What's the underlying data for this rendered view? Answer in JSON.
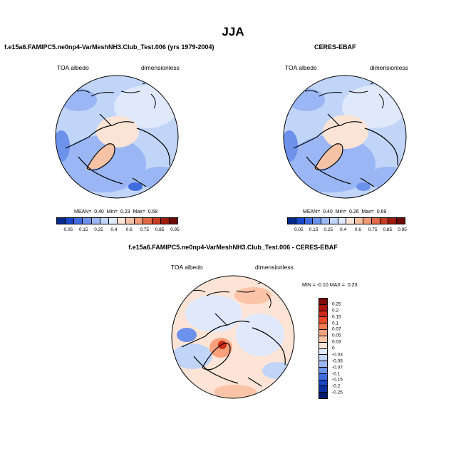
{
  "figure": {
    "season": "JJA",
    "panel1_title": "f.e15a6.FAMIPC5.ne0np4-VarMeshNH3.Club_Test.006 (yrs 1979-2004)",
    "panel2_title": "CERES-EBAF",
    "panel3_title": "f.e15a6.FAMIPC5.ne0np4-VarMeshNH3.Club_Test.006 - CERES-EBAF"
  },
  "chart_data": [
    {
      "type": "heatmap",
      "projection": "north-polar-stereographic",
      "title": "f.e15a6.FAMIPC5.ne0np4-VarMeshNH3.Club_Test.006 (yrs 1979-2004)",
      "left_label": "TOA albedo",
      "right_label": "dimensionless",
      "stats": {
        "mean_label": "MEAN=",
        "mean": "0.40",
        "min_label": "Min=",
        "min": "0.23",
        "max_label": "Max=",
        "max": "0.68"
      },
      "colorbar": {
        "levels": [
          "0.05",
          "0.15",
          "0.25",
          "0.4",
          "0.6",
          "0.75",
          "0.85",
          "0.95"
        ],
        "colors": [
          "#052a8c",
          "#1747c8",
          "#3f6de0",
          "#6d92ec",
          "#9ab6f4",
          "#c1d5f8",
          "#dfe9fb",
          "#fbe4d6",
          "#f6c2a6",
          "#ee9b76",
          "#df6a45",
          "#c53c22",
          "#9b1b0c",
          "#6c0a05"
        ]
      }
    },
    {
      "type": "heatmap",
      "projection": "north-polar-stereographic",
      "title": "CERES-EBAF",
      "left_label": "TOA albedo",
      "right_label": "dimensionless",
      "stats": {
        "mean_label": "MEAN=",
        "mean": "0.40",
        "min_label": "Min=",
        "min": "0.26",
        "max_label": "Max=",
        "max": "0.69"
      },
      "colorbar": {
        "levels": [
          "0.05",
          "0.15",
          "0.25",
          "0.4",
          "0.6",
          "0.75",
          "0.85",
          "0.95"
        ],
        "colors": [
          "#052a8c",
          "#1747c8",
          "#3f6de0",
          "#6d92ec",
          "#9ab6f4",
          "#c1d5f8",
          "#dfe9fb",
          "#fbe4d6",
          "#f6c2a6",
          "#ee9b76",
          "#df6a45",
          "#c53c22",
          "#9b1b0c",
          "#6c0a05"
        ]
      }
    },
    {
      "type": "heatmap",
      "projection": "north-polar-stereographic",
      "title": "f.e15a6.FAMIPC5.ne0np4-VarMeshNH3.Club_Test.006 - CERES-EBAF",
      "left_label": "TOA albedo",
      "right_label": "dimensionless",
      "stats": {
        "min_label": "MIN =",
        "min": "-0.10",
        "max_label": "MAX =",
        "max": "0.23"
      },
      "colorbar": {
        "levels": [
          "0.25",
          "0.2",
          "0.15",
          "0.1",
          "0.07",
          "0.05",
          "0.03",
          "0",
          "-0.03",
          "-0.05",
          "-0.07",
          "-0.1",
          "-0.15",
          "-0.2",
          "-0.25"
        ],
        "colors": [
          "#7a0a05",
          "#a8160b",
          "#cf2a17",
          "#ea4a28",
          "#f67a4f",
          "#f9a07c",
          "#fbc3a8",
          "#fde4d6",
          "#dfe9fb",
          "#c1d5f8",
          "#9ab6f4",
          "#6d92ec",
          "#3f6de0",
          "#1747c8",
          "#0b2fa0",
          "#031a70"
        ]
      }
    }
  ]
}
